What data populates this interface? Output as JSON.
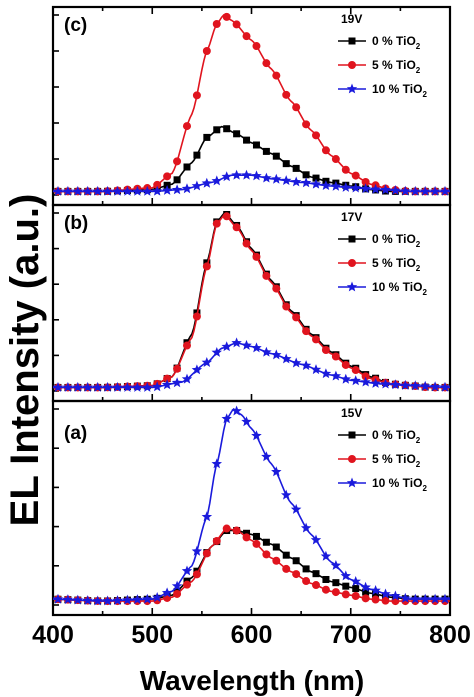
{
  "chart_data": {
    "type": "line",
    "ylabel": "EL Intensity (a.u.)",
    "xlabel": "Wavelength (nm)",
    "xlim": [
      400,
      800
    ],
    "x_ticks": [
      "400",
      "500",
      "600",
      "700",
      "800"
    ],
    "legend_placement": "top-right",
    "colors": {
      "0": "#000000",
      "5": "#e0141e",
      "10": "#1a1adc"
    },
    "panels": [
      {
        "label": "(c)",
        "voltage": "19V",
        "ylim": [
          0,
          1
        ],
        "series": [
          {
            "name": "0 % TiO",
            "sub": "2",
            "marker": "square",
            "color": "#000000",
            "x": [
              400,
              450,
              500,
              520,
              540,
              555,
              570,
              585,
              600,
              620,
              640,
              660,
              680,
              700,
              720,
              740,
              760,
              780,
              800
            ],
            "y": [
              0.02,
              0.02,
              0.03,
              0.06,
              0.18,
              0.32,
              0.38,
              0.34,
              0.29,
              0.23,
              0.16,
              0.1,
              0.07,
              0.05,
              0.03,
              0.02,
              0.02,
              0.02,
              0.02
            ]
          },
          {
            "name": "5 % TiO",
            "sub": "2",
            "marker": "circle",
            "color": "#e0141e",
            "x": [
              400,
              450,
              500,
              520,
              540,
              555,
              565,
              572,
              580,
              600,
              620,
              640,
              660,
              680,
              700,
              720,
              740,
              760,
              780,
              800
            ],
            "y": [
              0.02,
              0.02,
              0.04,
              0.12,
              0.45,
              0.8,
              0.95,
              1.0,
              0.97,
              0.86,
              0.7,
              0.52,
              0.36,
              0.22,
              0.12,
              0.06,
              0.03,
              0.02,
              0.02,
              0.02
            ]
          },
          {
            "name": "10 % TiO",
            "sub": "2",
            "marker": "star",
            "color": "#1a1adc",
            "x": [
              400,
              450,
              500,
              530,
              560,
              580,
              600,
              620,
              650,
              680,
              700,
              730,
              760,
              800
            ],
            "y": [
              0.02,
              0.02,
              0.02,
              0.03,
              0.07,
              0.11,
              0.11,
              0.09,
              0.07,
              0.05,
              0.04,
              0.03,
              0.02,
              0.02
            ]
          }
        ]
      },
      {
        "label": "(b)",
        "voltage": "17V",
        "ylim": [
          0,
          1
        ],
        "series": [
          {
            "name": "0 % TiO",
            "sub": "2",
            "marker": "square",
            "color": "#000000",
            "x": [
              400,
              450,
              500,
              520,
              540,
              555,
              565,
              573,
              585,
              600,
              620,
              640,
              660,
              680,
              700,
              720,
              740,
              760,
              780,
              800
            ],
            "y": [
              0.02,
              0.02,
              0.03,
              0.08,
              0.32,
              0.72,
              0.95,
              1.0,
              0.93,
              0.8,
              0.62,
              0.45,
              0.32,
              0.22,
              0.14,
              0.08,
              0.04,
              0.03,
              0.02,
              0.02
            ]
          },
          {
            "name": "5 % TiO",
            "sub": "2",
            "marker": "circle",
            "color": "#e0141e",
            "x": [
              400,
              450,
              500,
              520,
              540,
              555,
              565,
              573,
              585,
              600,
              620,
              640,
              660,
              680,
              700,
              720,
              740,
              760,
              780,
              800
            ],
            "y": [
              0.02,
              0.02,
              0.03,
              0.08,
              0.3,
              0.7,
              0.94,
              0.99,
              0.92,
              0.79,
              0.61,
              0.44,
              0.31,
              0.21,
              0.13,
              0.07,
              0.04,
              0.03,
              0.02,
              0.02
            ]
          },
          {
            "name": "10 % TiO",
            "sub": "2",
            "marker": "star",
            "color": "#1a1adc",
            "x": [
              400,
              450,
              500,
              530,
              555,
              570,
              585,
              600,
              620,
              650,
              680,
              700,
              730,
              760,
              800
            ],
            "y": [
              0.02,
              0.02,
              0.02,
              0.05,
              0.16,
              0.24,
              0.27,
              0.25,
              0.21,
              0.15,
              0.09,
              0.06,
              0.04,
              0.03,
              0.02
            ]
          }
        ]
      },
      {
        "label": "(a)",
        "voltage": "15V",
        "ylim": [
          0,
          1
        ],
        "series": [
          {
            "name": "0 % TiO",
            "sub": "2",
            "marker": "square",
            "color": "#000000",
            "x": [
              400,
              450,
              500,
              520,
              540,
              560,
              575,
              585,
              600,
              620,
              640,
              660,
              680,
              700,
              720,
              740,
              760,
              780,
              800
            ],
            "y": [
              0.03,
              0.02,
              0.03,
              0.05,
              0.14,
              0.3,
              0.38,
              0.38,
              0.36,
              0.31,
              0.24,
              0.17,
              0.12,
              0.09,
              0.06,
              0.04,
              0.03,
              0.03,
              0.03
            ]
          },
          {
            "name": "5 % TiO",
            "sub": "2",
            "marker": "circle",
            "color": "#e0141e",
            "x": [
              400,
              450,
              500,
              520,
              540,
              560,
              575,
              585,
              600,
              620,
              640,
              660,
              680,
              700,
              720,
              740,
              760,
              780,
              800
            ],
            "y": [
              0.03,
              0.02,
              0.02,
              0.04,
              0.12,
              0.3,
              0.39,
              0.38,
              0.33,
              0.24,
              0.17,
              0.11,
              0.07,
              0.05,
              0.03,
              0.02,
              0.02,
              0.02,
              0.02
            ]
          },
          {
            "name": "10 % TiO",
            "sub": "2",
            "marker": "star",
            "color": "#1a1adc",
            "x": [
              400,
              450,
              500,
              520,
              540,
              555,
              565,
              575,
              582,
              590,
              600,
              620,
              640,
              660,
              680,
              700,
              720,
              740,
              760,
              780,
              800
            ],
            "y": [
              0.03,
              0.02,
              0.03,
              0.07,
              0.2,
              0.45,
              0.72,
              0.95,
              1.0,
              0.97,
              0.9,
              0.72,
              0.52,
              0.36,
              0.22,
              0.13,
              0.08,
              0.05,
              0.03,
              0.03,
              0.03
            ]
          }
        ]
      }
    ]
  }
}
